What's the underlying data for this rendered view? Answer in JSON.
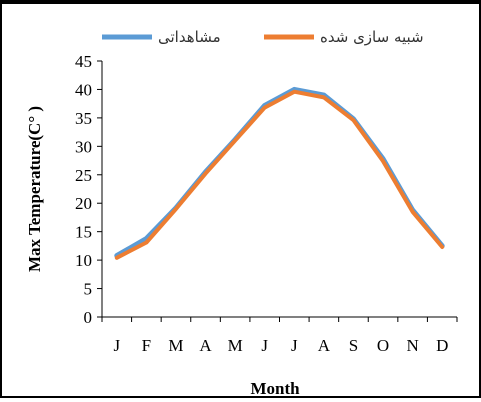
{
  "chart_data": {
    "type": "line",
    "categories": [
      "J",
      "F",
      "M",
      "A",
      "M",
      "J",
      "J",
      "A",
      "S",
      "O",
      "N",
      "D"
    ],
    "series": [
      {
        "name": "مشاهداتی",
        "color": "#5b9bd5",
        "values": [
          10.8,
          13.8,
          19.2,
          25.5,
          31.2,
          37.2,
          40.0,
          39.0,
          34.8,
          27.8,
          18.8,
          12.5
        ]
      },
      {
        "name": "شبیه سازی شده",
        "color": "#ed7d31",
        "values": [
          10.4,
          13.1,
          19.0,
          25.2,
          31.0,
          36.8,
          39.6,
          38.6,
          34.6,
          27.4,
          18.5,
          12.3
        ]
      }
    ],
    "xlabel": "Month",
    "ylabel": "Max Temperature(C° )",
    "ylim": [
      0,
      45
    ],
    "yticks": [
      0,
      5,
      10,
      15,
      20,
      25,
      30,
      35,
      40,
      45
    ],
    "grid": false,
    "legend": "top"
  }
}
